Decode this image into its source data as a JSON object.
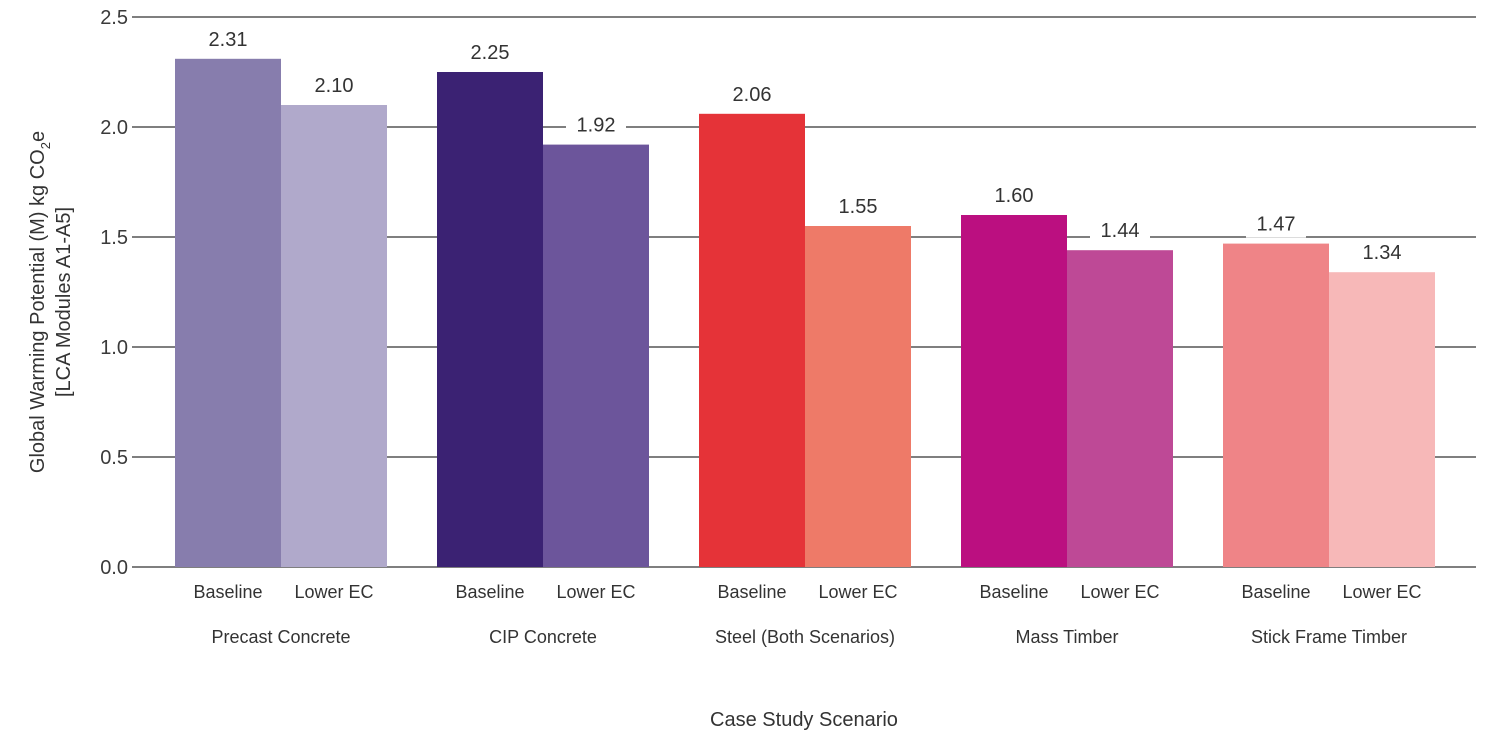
{
  "chart_data": {
    "type": "bar",
    "ylim": [
      0,
      2.5
    ],
    "yticks": [
      "0.0",
      "0.5",
      "1.0",
      "1.5",
      "2.0",
      "2.5"
    ],
    "ylabel_line1": "Global Warming Potential (M) kg CO",
    "ylabel_sub": "2",
    "ylabel_line1_end": "e",
    "ylabel_line2": "[LCA Modules A1-A5]",
    "xlabel": "Case Study Scenario",
    "grid": true,
    "groups": [
      {
        "name": "Precast Concrete",
        "bars": [
          {
            "label": "Baseline",
            "value": 2.31,
            "value_label": "2.31",
            "color": "#877dad"
          },
          {
            "label": "Lower EC",
            "value": 2.1,
            "value_label": "2.10",
            "color": "#b0a9cb"
          }
        ]
      },
      {
        "name": "CIP Concrete",
        "bars": [
          {
            "label": "Baseline",
            "value": 2.25,
            "value_label": "2.25",
            "color": "#3b2273"
          },
          {
            "label": "Lower EC",
            "value": 1.92,
            "value_label": "1.92",
            "color": "#6c559b"
          }
        ]
      },
      {
        "name": "Steel (Both Scenarios)",
        "bars": [
          {
            "label": "Baseline",
            "value": 2.06,
            "value_label": "2.06",
            "color": "#e53338"
          },
          {
            "label": "Lower EC",
            "value": 1.55,
            "value_label": "1.55",
            "color": "#ee7a68"
          }
        ]
      },
      {
        "name": "Mass Timber",
        "bars": [
          {
            "label": "Baseline",
            "value": 1.6,
            "value_label": "1.60",
            "color": "#bb0f80"
          },
          {
            "label": "Lower EC",
            "value": 1.44,
            "value_label": "1.44",
            "color": "#be4996"
          }
        ]
      },
      {
        "name": "Stick Frame Timber",
        "bars": [
          {
            "label": "Baseline",
            "value": 1.47,
            "value_label": "1.47",
            "color": "#ef8487"
          },
          {
            "label": "Lower EC",
            "value": 1.34,
            "value_label": "1.34",
            "color": "#f7b8b8"
          }
        ]
      }
    ]
  }
}
